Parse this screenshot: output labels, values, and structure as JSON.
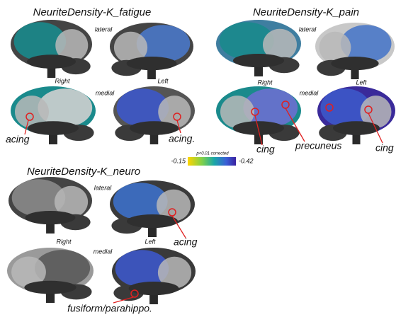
{
  "panels": [
    {
      "title": "NeuriteDensity-K_fatigue",
      "lateral": "lateral",
      "right": "Right",
      "medial": "medial",
      "left": "Left",
      "annotations": [
        "acing",
        "acing."
      ]
    },
    {
      "title": "NeuriteDensity-K_pain",
      "lateral": "lateral",
      "right": "Right",
      "medial": "medial",
      "left": "Left",
      "annotations": [
        "cing",
        "precuneus",
        "cing"
      ]
    },
    {
      "title": "NeuriteDensity-K_neuro",
      "lateral": "lateral",
      "right": "Right",
      "medial": "medial",
      "left": "Left",
      "annotations": [
        "acing",
        "fusiform/parahippo."
      ]
    }
  ],
  "colorbar": {
    "note": "p<0.01 corrected",
    "min": "-0.15",
    "max": "-0.42"
  }
}
